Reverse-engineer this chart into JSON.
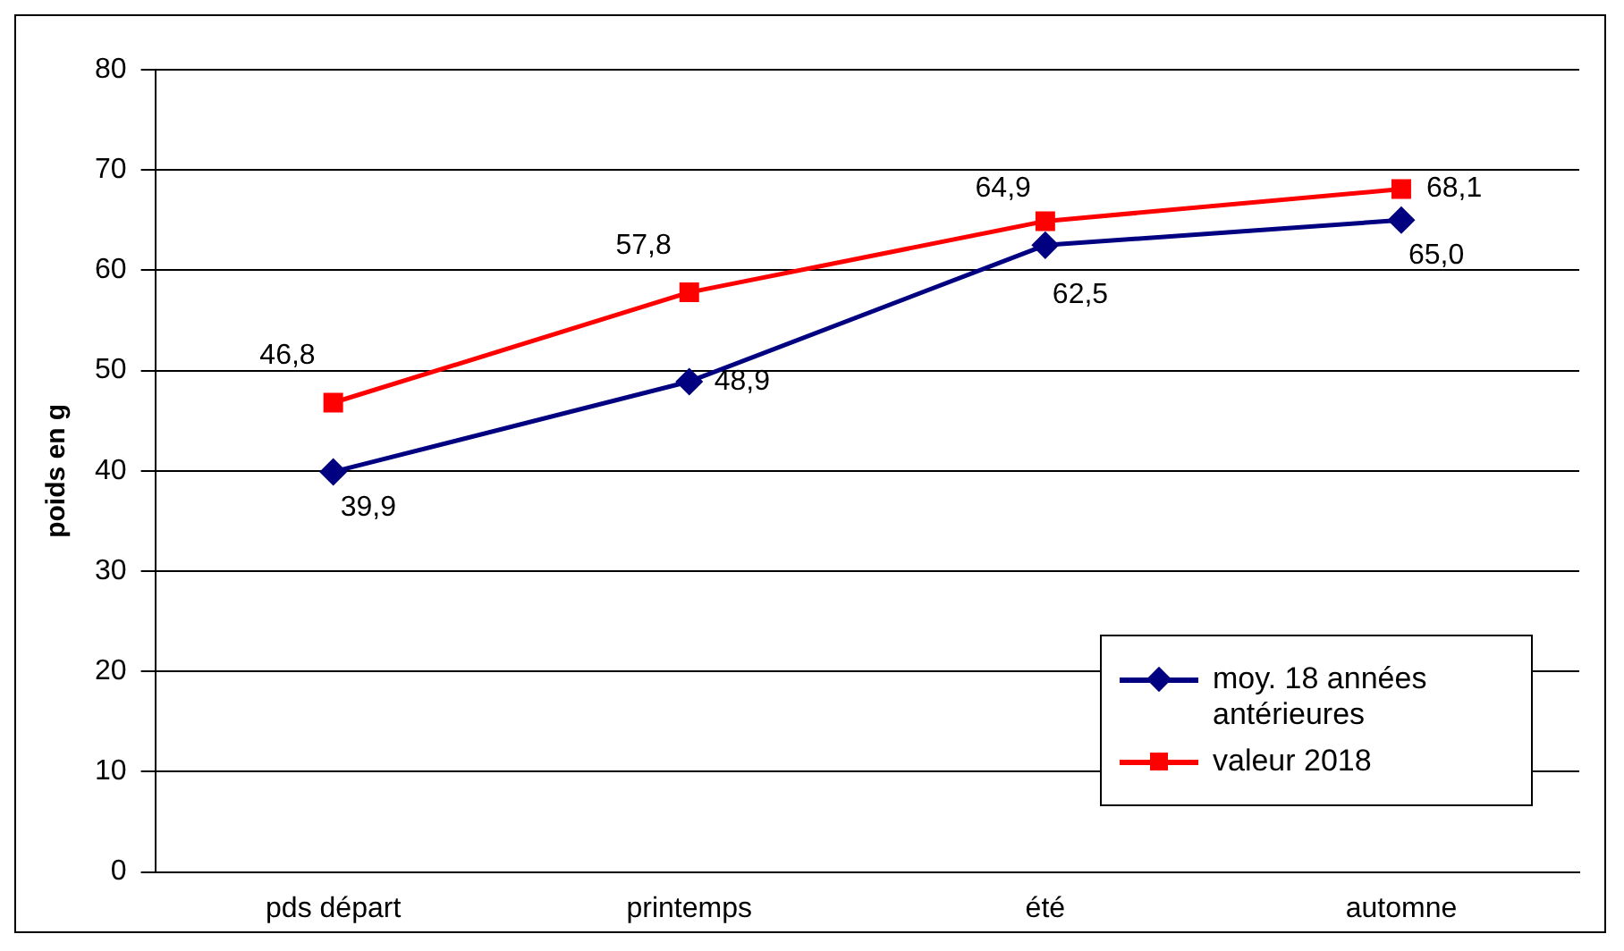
{
  "chart_data": {
    "type": "line",
    "ylabel": "poids en g",
    "categories": [
      "pds départ",
      "printemps",
      "été",
      "automne"
    ],
    "series": [
      {
        "name": "moy. 18 années antérieures",
        "color": "#000080",
        "marker": "diamond",
        "values": [
          39.9,
          48.9,
          62.5,
          65.0
        ],
        "value_labels": [
          "39,9",
          "48,9",
          "62,5",
          "65,0"
        ]
      },
      {
        "name": "valeur 2018",
        "color": "#ff0000",
        "marker": "square",
        "values": [
          46.8,
          57.8,
          64.9,
          68.1
        ],
        "value_labels": [
          "46,8",
          "57,8",
          "64,9",
          "68,1"
        ]
      }
    ],
    "ylim": [
      0,
      80
    ],
    "yticks": [
      0,
      10,
      20,
      30,
      40,
      50,
      60,
      70,
      80
    ],
    "grid": "y",
    "legend": "bottom right",
    "line_style": "solid"
  }
}
